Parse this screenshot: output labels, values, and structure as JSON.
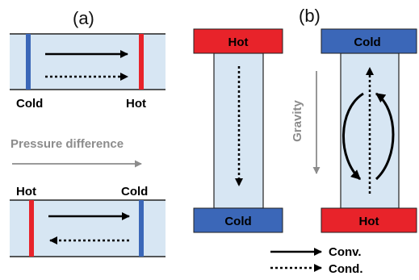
{
  "panel_a": {
    "label": "(a)",
    "top_left_label": "Cold",
    "top_right_label": "Hot",
    "pressure_label": "Pressure difference",
    "bottom_left_label": "Hot",
    "bottom_right_label": "Cold"
  },
  "panel_b": {
    "label": "(b)",
    "left_top_label": "Hot",
    "left_bottom_label": "Cold",
    "right_top_label": "Cold",
    "right_bottom_label": "Hot",
    "gravity_label": "Gravity"
  },
  "legend": {
    "conv_label": "Conv.",
    "cond_label": "Cond."
  },
  "colors": {
    "hot": "#e8232a",
    "cold": "#3b67b8",
    "channel_fill": "#d7e6f3",
    "channel_line": "#222222",
    "gray": "#8c8c8c"
  }
}
